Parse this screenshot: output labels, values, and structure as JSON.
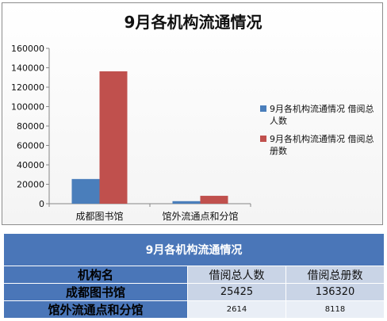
{
  "chart_data": {
    "type": "bar",
    "title": "9月各机构流通情况",
    "categories": [
      "成都图书馆",
      "馆外流通点和分馆"
    ],
    "series": [
      {
        "name": "9月各机构流通情况 借阅总人数",
        "values": [
          25425,
          2614
        ],
        "color": "#4a7ebb"
      },
      {
        "name": "9月各机构流通情况 借阅总册数",
        "values": [
          136320,
          8118
        ],
        "color": "#c0504d"
      }
    ],
    "ylim": [
      0,
      160000
    ],
    "yticks": [
      "0",
      "20000",
      "40000",
      "60000",
      "80000",
      "100000",
      "120000",
      "140000",
      "160000"
    ],
    "grid": false,
    "legend_position": "right"
  },
  "table": {
    "title": "9月各机构流通情况",
    "header_name": "机构名",
    "columns": [
      "借阅总人数",
      "借阅总册数"
    ],
    "rows": [
      {
        "name": "成都图书馆",
        "values": [
          "25425",
          "136320"
        ]
      },
      {
        "name": "馆外流通点和分馆",
        "values": [
          "2614",
          "8118"
        ]
      }
    ]
  }
}
